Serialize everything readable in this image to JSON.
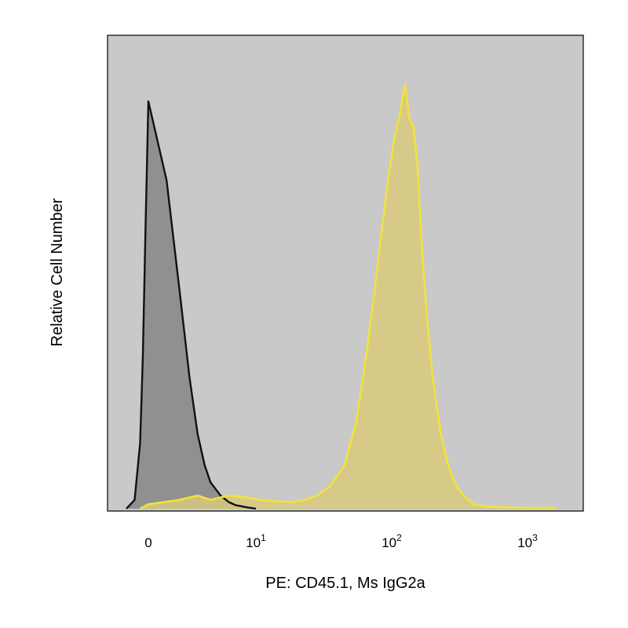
{
  "chart_data": {
    "type": "area",
    "xlabel": "PE: CD45.1, Ms IgG2a",
    "ylabel": "Relative Cell Number",
    "x_scale": "biexponential",
    "x_ticks": [
      {
        "value": 0,
        "base": "0",
        "exp": ""
      },
      {
        "value": 10,
        "base": "10",
        "exp": "1"
      },
      {
        "value": 100,
        "base": "10",
        "exp": "2"
      },
      {
        "value": 1000,
        "base": "10",
        "exp": "3"
      }
    ],
    "grid": false,
    "legend": "none",
    "plot_background": "#c9c9c9",
    "series": [
      {
        "color": "#111111",
        "fill": "#8d8d8d",
        "x": [
          -4,
          -2.5,
          -1.5,
          -1,
          -0.5,
          0,
          0.5,
          1,
          1.5,
          2,
          2.5,
          3,
          4,
          5,
          6,
          8,
          10
        ],
        "y": [
          0,
          0.02,
          0.15,
          0.35,
          0.65,
          0.93,
          0.75,
          0.5,
          0.3,
          0.17,
          0.1,
          0.06,
          0.03,
          0.015,
          0.008,
          0.003,
          0
        ]
      },
      {
        "color": "#f2e23a",
        "fill": "#d9ca7d",
        "x": [
          -1.5,
          0,
          1,
          2,
          3,
          5,
          8,
          12,
          18,
          22,
          28,
          35,
          45,
          55,
          65,
          75,
          85,
          95,
          105,
          115,
          125,
          135,
          145,
          155,
          165,
          180,
          200,
          230,
          260,
          300,
          350,
          400,
          500,
          700,
          1000,
          1600
        ],
        "y": [
          0,
          0.01,
          0.02,
          0.03,
          0.02,
          0.03,
          0.025,
          0.018,
          0.015,
          0.018,
          0.03,
          0.05,
          0.1,
          0.2,
          0.35,
          0.5,
          0.64,
          0.76,
          0.85,
          0.9,
          0.97,
          0.89,
          0.87,
          0.78,
          0.62,
          0.45,
          0.3,
          0.17,
          0.1,
          0.05,
          0.025,
          0.01,
          0.005,
          0.003,
          0.002,
          0.002
        ]
      }
    ]
  }
}
